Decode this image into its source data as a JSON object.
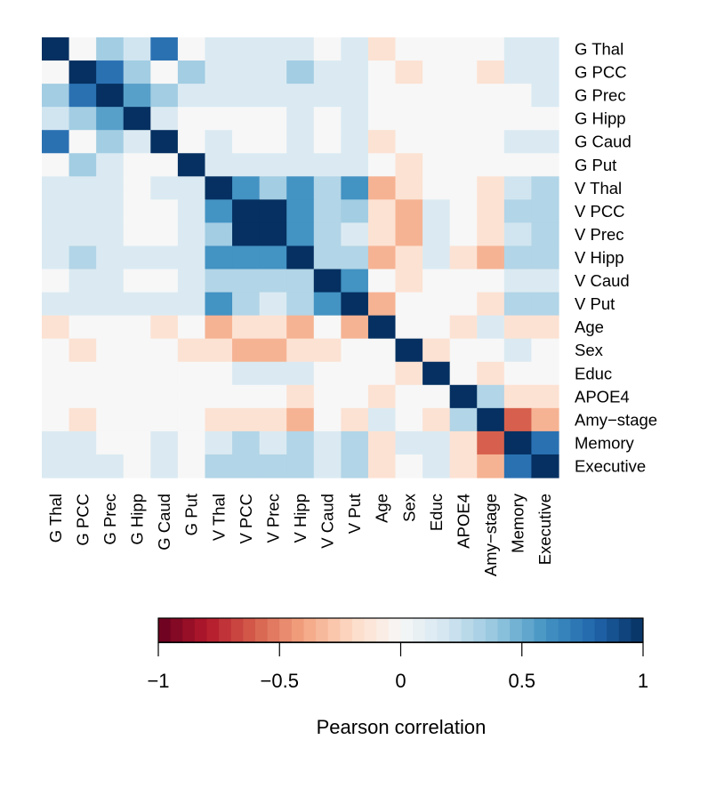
{
  "chart_data": {
    "type": "heatmap",
    "title": "",
    "variables": [
      "G Thal",
      "G PCC",
      "G Prec",
      "G Hipp",
      "G Caud",
      "G Put",
      "V Thal",
      "V PCC",
      "V Prec",
      "V Hipp",
      "V Caud",
      "V Put",
      "Age",
      "Sex",
      "Educ",
      "APOE4",
      "Amy−stage",
      "Memory",
      "Executive"
    ],
    "matrix": [
      [
        1.0,
        0.0,
        0.35,
        0.2,
        0.75,
        0.0,
        0.15,
        0.15,
        0.15,
        0.15,
        0.0,
        0.15,
        -0.15,
        0.0,
        0.0,
        0.0,
        0.0,
        0.15,
        0.15
      ],
      [
        0.0,
        1.0,
        0.75,
        0.35,
        0.0,
        0.35,
        0.15,
        0.15,
        0.15,
        0.35,
        0.15,
        0.15,
        0.0,
        -0.15,
        0.0,
        0.0,
        -0.15,
        0.15,
        0.15
      ],
      [
        0.35,
        0.75,
        1.0,
        0.55,
        0.35,
        0.15,
        0.15,
        0.15,
        0.15,
        0.15,
        0.15,
        0.15,
        0.0,
        0.0,
        0.0,
        0.0,
        0.0,
        0.0,
        0.15
      ],
      [
        0.2,
        0.35,
        0.55,
        1.0,
        0.15,
        0.0,
        0.0,
        0.0,
        0.0,
        0.15,
        0.0,
        0.15,
        0.0,
        0.0,
        0.0,
        0.0,
        0.0,
        0.0,
        0.0
      ],
      [
        0.75,
        0.0,
        0.35,
        0.15,
        1.0,
        0.0,
        0.15,
        0.0,
        0.0,
        0.15,
        0.0,
        0.15,
        -0.15,
        0.0,
        0.0,
        0.0,
        0.0,
        0.15,
        0.15
      ],
      [
        0.0,
        0.35,
        0.15,
        0.0,
        0.0,
        1.0,
        0.15,
        0.15,
        0.15,
        0.15,
        0.15,
        0.15,
        0.0,
        -0.15,
        0.0,
        0.0,
        0.0,
        0.0,
        0.0
      ],
      [
        0.15,
        0.15,
        0.15,
        0.0,
        0.15,
        0.15,
        1.0,
        0.6,
        0.35,
        0.6,
        0.3,
        0.6,
        -0.35,
        -0.15,
        0.0,
        0.0,
        -0.15,
        0.2,
        0.3
      ],
      [
        0.15,
        0.15,
        0.15,
        0.0,
        0.0,
        0.15,
        0.6,
        1.0,
        1.0,
        0.6,
        0.3,
        0.35,
        -0.15,
        -0.35,
        0.15,
        0.0,
        -0.15,
        0.3,
        0.3
      ],
      [
        0.15,
        0.15,
        0.15,
        0.0,
        0.0,
        0.15,
        0.35,
        1.0,
        1.0,
        0.6,
        0.3,
        0.15,
        -0.15,
        -0.35,
        0.15,
        0.0,
        -0.15,
        0.2,
        0.3
      ],
      [
        0.15,
        0.3,
        0.15,
        0.15,
        0.15,
        0.15,
        0.6,
        0.6,
        0.6,
        1.0,
        0.3,
        0.3,
        -0.35,
        -0.15,
        0.15,
        -0.15,
        -0.35,
        0.3,
        0.3
      ],
      [
        0.0,
        0.15,
        0.15,
        0.0,
        0.0,
        0.15,
        0.3,
        0.3,
        0.3,
        0.3,
        1.0,
        0.6,
        0.0,
        -0.15,
        0.0,
        0.0,
        0.0,
        0.15,
        0.15
      ],
      [
        0.15,
        0.15,
        0.15,
        0.15,
        0.15,
        0.15,
        0.6,
        0.3,
        0.15,
        0.3,
        0.6,
        1.0,
        -0.35,
        0.0,
        0.0,
        0.0,
        -0.15,
        0.3,
        0.3
      ],
      [
        -0.15,
        0.0,
        0.0,
        0.0,
        -0.15,
        0.0,
        -0.35,
        -0.15,
        -0.15,
        -0.35,
        0.0,
        -0.35,
        1.0,
        0.0,
        0.0,
        -0.15,
        0.15,
        -0.15,
        -0.15
      ],
      [
        0.0,
        -0.15,
        0.0,
        0.0,
        0.0,
        -0.15,
        -0.15,
        -0.35,
        -0.35,
        -0.15,
        -0.15,
        0.0,
        0.0,
        1.0,
        -0.15,
        0.0,
        0.0,
        0.15,
        0.0
      ],
      [
        0.0,
        0.0,
        0.0,
        0.0,
        0.0,
        0.0,
        0.0,
        0.15,
        0.15,
        0.15,
        0.0,
        0.0,
        0.0,
        -0.15,
        1.0,
        0.0,
        -0.15,
        0.0,
        0.0
      ],
      [
        0.0,
        0.0,
        0.0,
        0.0,
        0.0,
        0.0,
        0.0,
        0.0,
        0.0,
        -0.15,
        0.0,
        0.0,
        -0.15,
        0.0,
        0.0,
        1.0,
        0.3,
        -0.15,
        -0.15
      ],
      [
        0.0,
        -0.15,
        0.0,
        0.0,
        0.0,
        0.0,
        -0.15,
        -0.15,
        -0.15,
        -0.35,
        0.0,
        -0.15,
        0.15,
        0.0,
        -0.15,
        0.3,
        1.0,
        -0.6,
        -0.35
      ],
      [
        0.15,
        0.15,
        0.0,
        0.0,
        0.15,
        0.0,
        0.15,
        0.3,
        0.15,
        0.3,
        0.15,
        0.3,
        -0.15,
        0.15,
        0.15,
        -0.15,
        -0.6,
        1.0,
        0.75
      ],
      [
        0.15,
        0.15,
        0.15,
        0.0,
        0.15,
        0.0,
        0.3,
        0.3,
        0.3,
        0.3,
        0.15,
        0.3,
        -0.15,
        0.0,
        0.15,
        -0.15,
        -0.35,
        0.75,
        1.0
      ]
    ],
    "colorbar": {
      "label": "Pearson correlation",
      "range": [
        -1,
        1
      ],
      "ticks": [
        -1,
        -0.5,
        0,
        0.5,
        1
      ],
      "tick_labels": [
        "−1",
        "−0.5",
        "0",
        "0.5",
        "1"
      ],
      "colors": [
        "#67001f",
        "#b2182b",
        "#d6604d",
        "#f4a582",
        "#fddbc7",
        "#f7f7f7",
        "#d1e5f0",
        "#92c5de",
        "#4393c3",
        "#2166ac",
        "#053061"
      ]
    },
    "row_label_side": "right",
    "column_label_side": "bottom"
  }
}
